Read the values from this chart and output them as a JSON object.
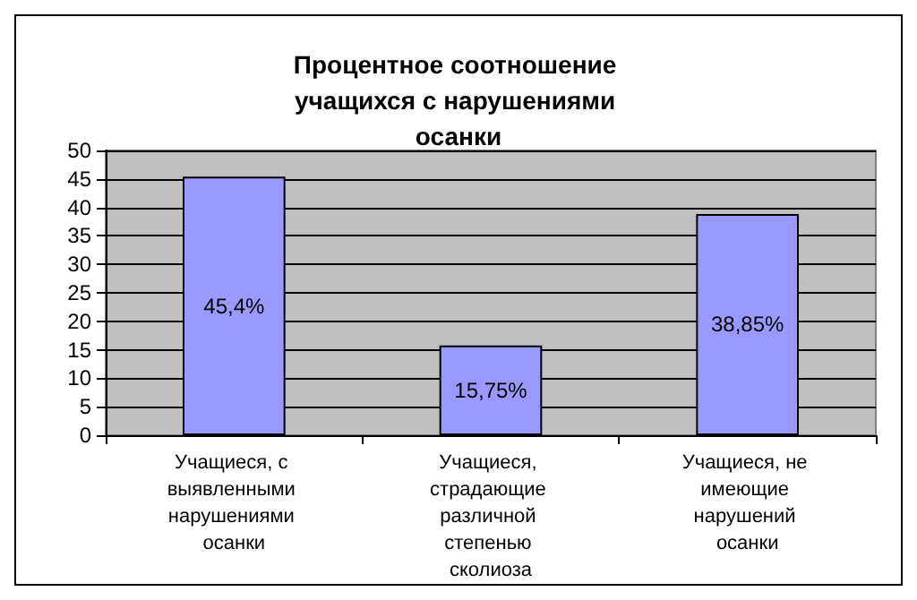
{
  "chart_data": {
    "type": "bar",
    "title": "Процентное соотношение учащихся с нарушениями осанки",
    "categories": [
      "Учащиеся, с выявленными нарушениями осанки",
      "Учащиеся, страдающие различной степенью сколиоза",
      "Учащиеся, не имеющие нарушений осанки"
    ],
    "values": [
      45.4,
      15.75,
      38.85
    ],
    "value_labels": [
      "45,4%",
      "15,75%",
      "38,85%"
    ],
    "color": "#9999ff",
    "ylim": [
      0,
      50
    ],
    "yticks": [
      0,
      5,
      10,
      15,
      20,
      25,
      30,
      35,
      40,
      45,
      50
    ],
    "grid": "y"
  }
}
